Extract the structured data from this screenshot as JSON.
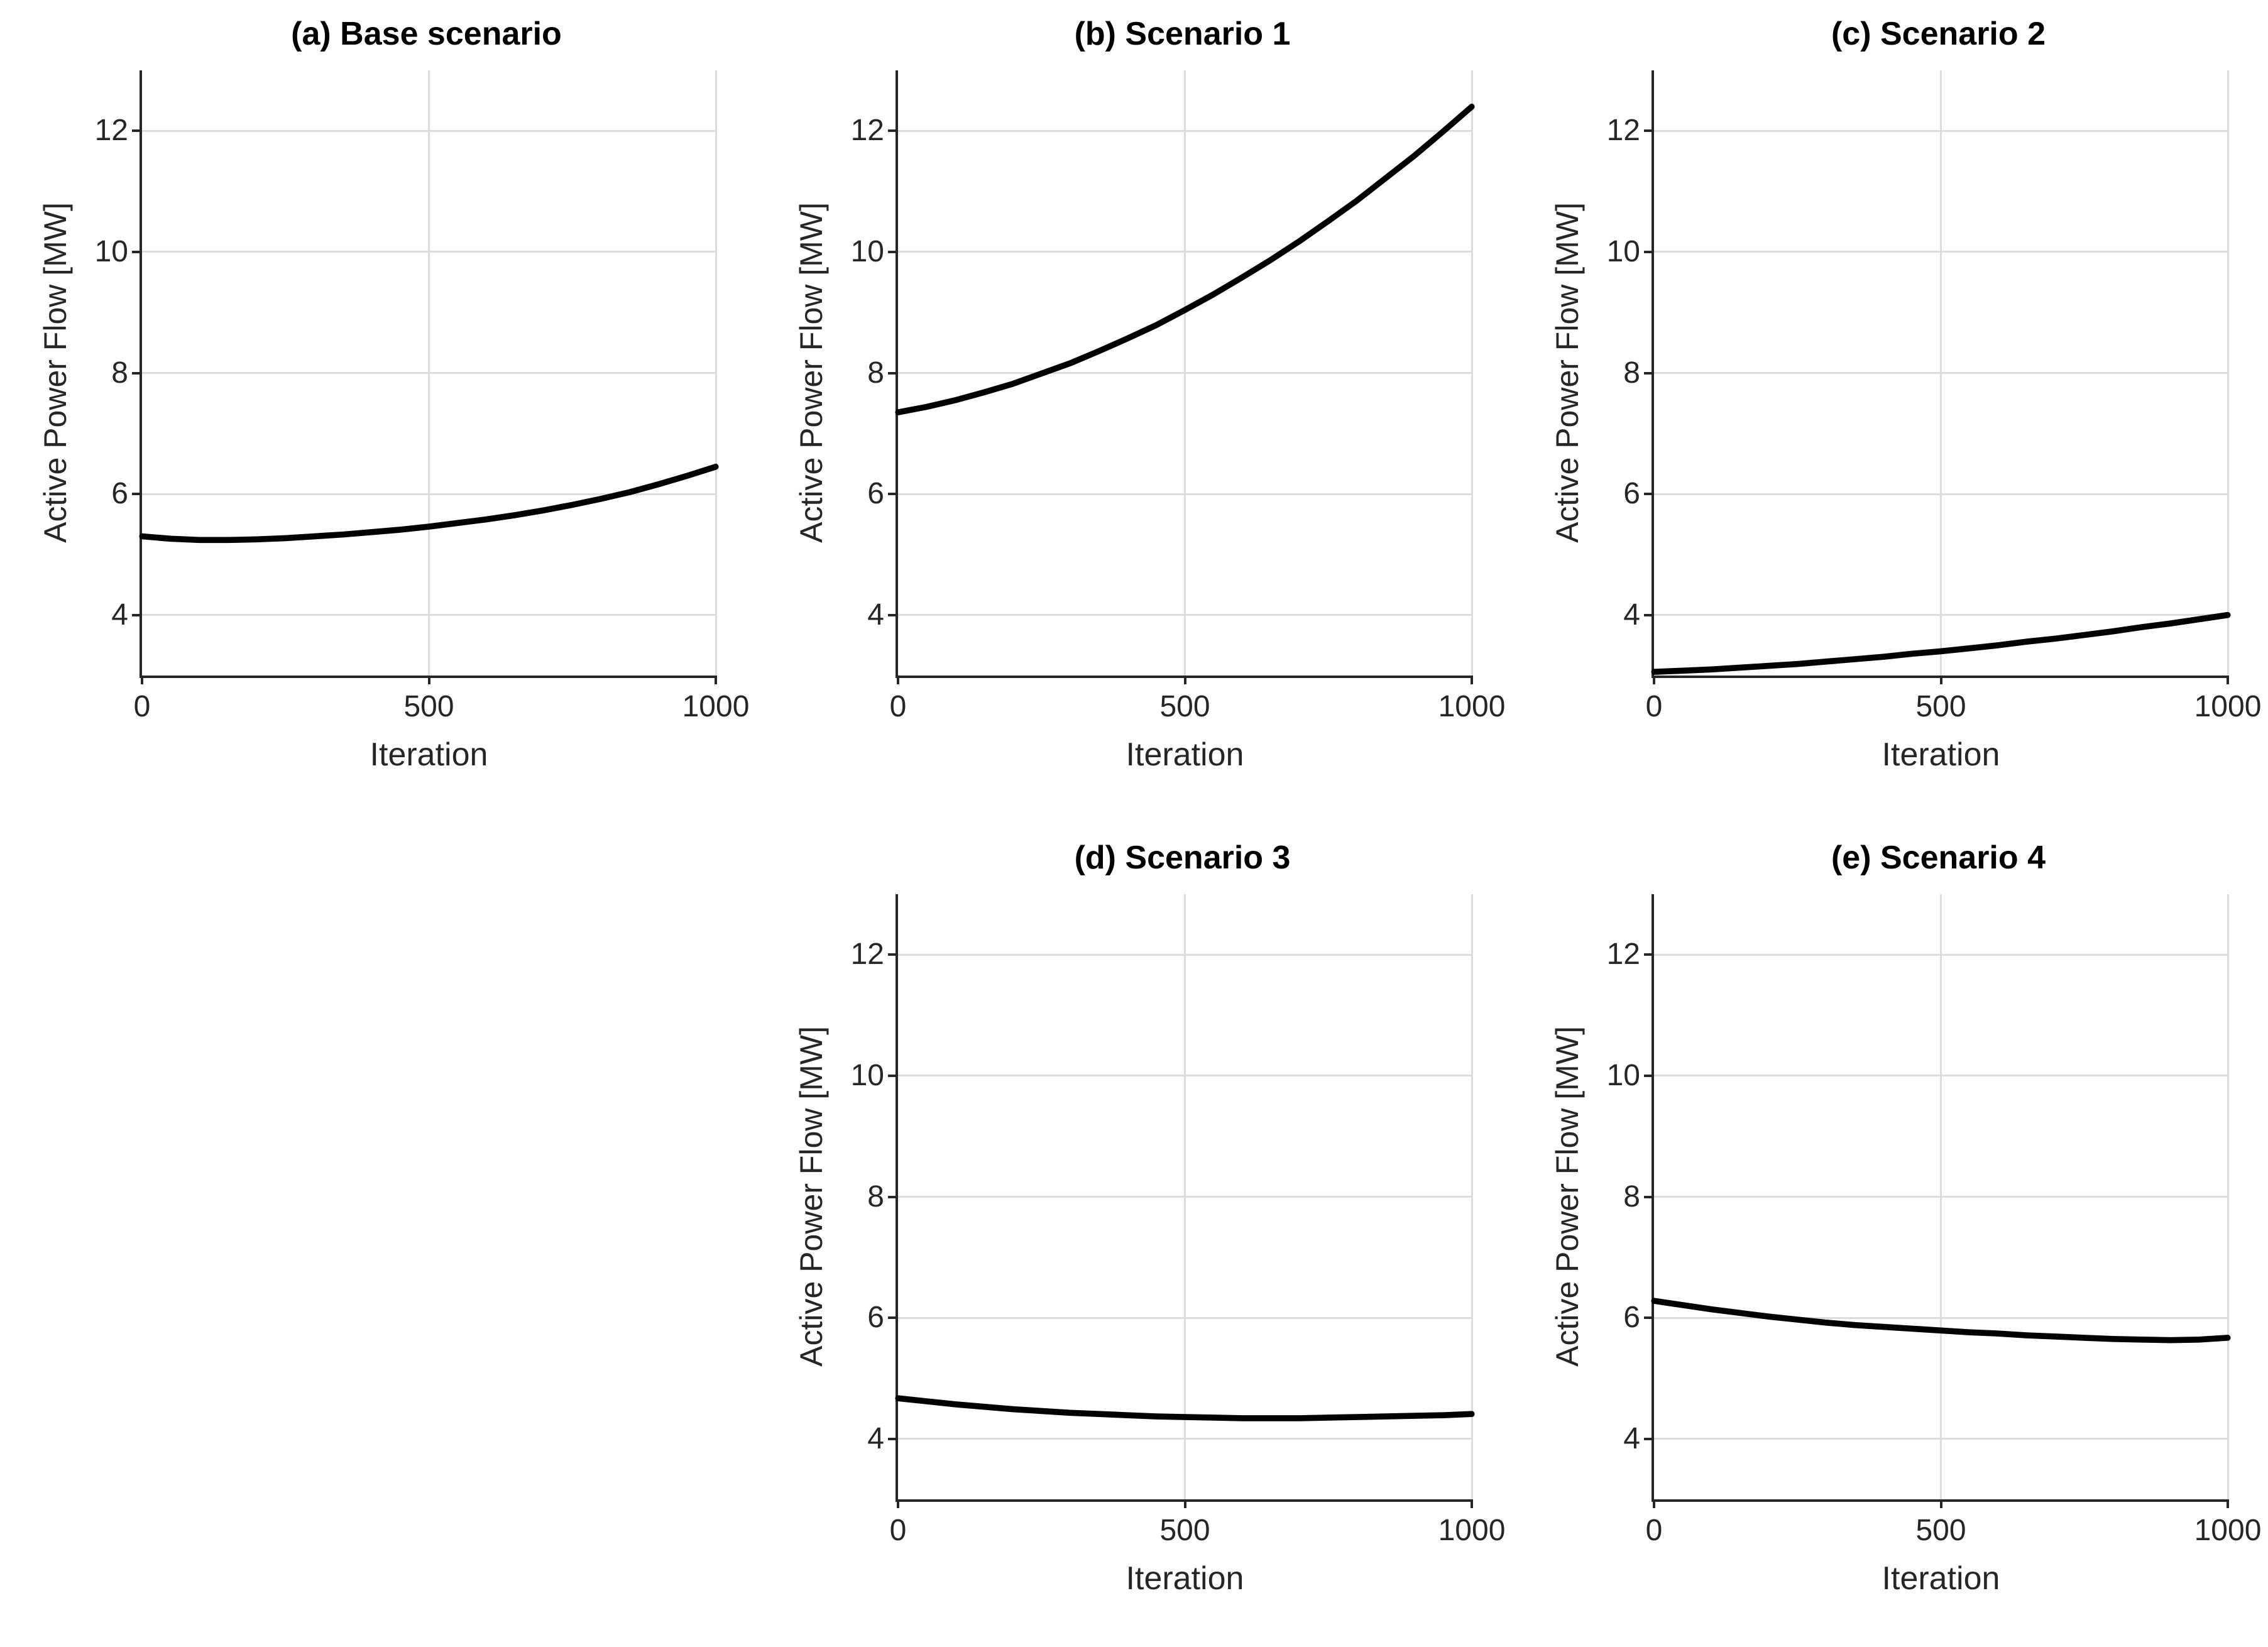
{
  "figure": {
    "background": "#ffffff",
    "shared_xlabel": "Iteration",
    "shared_ylabel": "Active Power Flow [MW]"
  },
  "colors": {
    "line": "#000000",
    "spine": "#262626",
    "grid": "#dcdcdc",
    "tick_label": "#262626",
    "title": "#000000",
    "background": "#ffffff"
  },
  "chart_data": [
    {
      "type": "line",
      "title": "(a) Base scenario",
      "xlabel": "Iteration",
      "ylabel": "Active Power Flow [MW]",
      "xlim": [
        0,
        1000
      ],
      "ylim": [
        3,
        13
      ],
      "xticks": [
        0,
        500,
        1000
      ],
      "yticks": [
        4,
        6,
        8,
        10,
        12
      ],
      "grid": true,
      "legend": "none",
      "line_color": "#000000",
      "series": [
        {
          "name": "Active Power Flow",
          "x": [
            0,
            50,
            100,
            150,
            200,
            250,
            300,
            350,
            400,
            450,
            500,
            550,
            600,
            650,
            700,
            750,
            800,
            850,
            900,
            950,
            1000
          ],
          "y": [
            5.3,
            5.26,
            5.24,
            5.24,
            5.25,
            5.27,
            5.3,
            5.33,
            5.37,
            5.41,
            5.46,
            5.52,
            5.58,
            5.65,
            5.73,
            5.82,
            5.92,
            6.03,
            6.16,
            6.3,
            6.45
          ]
        }
      ]
    },
    {
      "type": "line",
      "title": "(b) Scenario 1",
      "xlabel": "Iteration",
      "ylabel": "Active Power Flow [MW]",
      "xlim": [
        0,
        1000
      ],
      "ylim": [
        3,
        13
      ],
      "xticks": [
        0,
        500,
        1000
      ],
      "yticks": [
        4,
        6,
        8,
        10,
        12
      ],
      "grid": true,
      "legend": "none",
      "line_color": "#000000",
      "series": [
        {
          "name": "Active Power Flow",
          "x": [
            0,
            50,
            100,
            150,
            200,
            250,
            300,
            350,
            400,
            450,
            500,
            550,
            600,
            650,
            700,
            750,
            800,
            850,
            900,
            950,
            1000
          ],
          "y": [
            7.35,
            7.44,
            7.55,
            7.68,
            7.82,
            7.99,
            8.16,
            8.36,
            8.57,
            8.79,
            9.04,
            9.3,
            9.58,
            9.87,
            10.18,
            10.51,
            10.85,
            11.22,
            11.59,
            11.99,
            12.4
          ]
        }
      ]
    },
    {
      "type": "line",
      "title": "(c) Scenario 2",
      "xlabel": "Iteration",
      "ylabel": "Active Power Flow [MW]",
      "xlim": [
        0,
        1000
      ],
      "ylim": [
        3,
        13
      ],
      "xticks": [
        0,
        500,
        1000
      ],
      "yticks": [
        4,
        6,
        8,
        10,
        12
      ],
      "grid": true,
      "legend": "none",
      "line_color": "#000000",
      "series": [
        {
          "name": "Active Power Flow",
          "x": [
            0,
            50,
            100,
            150,
            200,
            250,
            300,
            350,
            400,
            450,
            500,
            550,
            600,
            650,
            700,
            750,
            800,
            850,
            900,
            950,
            1000
          ],
          "y": [
            3.06,
            3.08,
            3.1,
            3.13,
            3.16,
            3.19,
            3.23,
            3.27,
            3.31,
            3.36,
            3.4,
            3.45,
            3.5,
            3.56,
            3.61,
            3.67,
            3.73,
            3.8,
            3.86,
            3.93,
            4.0
          ]
        }
      ]
    },
    {
      "type": "line",
      "title": "(d) Scenario 3",
      "xlabel": "Iteration",
      "ylabel": "Active Power Flow [MW]",
      "xlim": [
        0,
        1000
      ],
      "ylim": [
        3,
        13
      ],
      "xticks": [
        0,
        500,
        1000
      ],
      "yticks": [
        4,
        6,
        8,
        10,
        12
      ],
      "grid": true,
      "legend": "none",
      "line_color": "#000000",
      "series": [
        {
          "name": "Active Power Flow",
          "x": [
            0,
            50,
            100,
            150,
            200,
            250,
            300,
            350,
            400,
            450,
            500,
            550,
            600,
            650,
            700,
            750,
            800,
            850,
            900,
            950,
            1000
          ],
          "y": [
            4.67,
            4.62,
            4.57,
            4.53,
            4.49,
            4.46,
            4.43,
            4.41,
            4.39,
            4.37,
            4.36,
            4.35,
            4.34,
            4.34,
            4.34,
            4.35,
            4.36,
            4.37,
            4.38,
            4.39,
            4.41
          ]
        }
      ]
    },
    {
      "type": "line",
      "title": "(e) Scenario 4",
      "xlabel": "Iteration",
      "ylabel": "Active Power Flow [MW]",
      "xlim": [
        0,
        1000
      ],
      "ylim": [
        3,
        13
      ],
      "xticks": [
        0,
        500,
        1000
      ],
      "yticks": [
        4,
        6,
        8,
        10,
        12
      ],
      "grid": true,
      "legend": "none",
      "line_color": "#000000",
      "series": [
        {
          "name": "Active Power Flow",
          "x": [
            0,
            50,
            100,
            150,
            200,
            250,
            300,
            350,
            400,
            450,
            500,
            550,
            600,
            650,
            700,
            750,
            800,
            850,
            900,
            950,
            1000
          ],
          "y": [
            6.28,
            6.21,
            6.14,
            6.08,
            6.02,
            5.97,
            5.92,
            5.88,
            5.85,
            5.82,
            5.79,
            5.76,
            5.74,
            5.71,
            5.69,
            5.67,
            5.65,
            5.64,
            5.63,
            5.64,
            5.67
          ]
        }
      ]
    }
  ]
}
